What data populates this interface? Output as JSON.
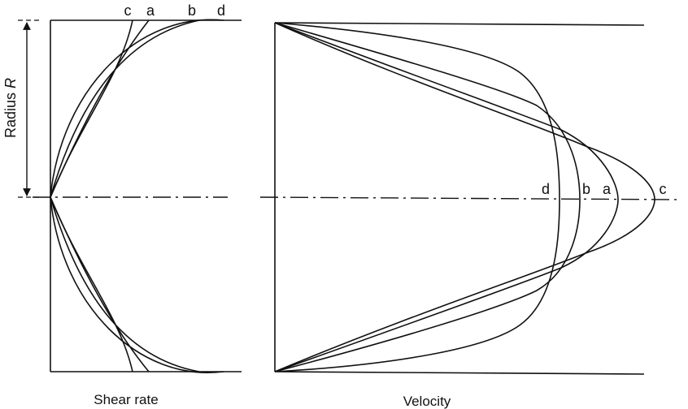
{
  "left_panel": {
    "caption": "Shear rate",
    "curve_labels": [
      "c",
      "a",
      "b",
      "d"
    ]
  },
  "right_panel": {
    "caption": "Velocity",
    "curve_labels": [
      "d",
      "b",
      "a",
      "c"
    ]
  },
  "radius_label": {
    "prefix": "Radius ",
    "symbol": "R"
  }
}
